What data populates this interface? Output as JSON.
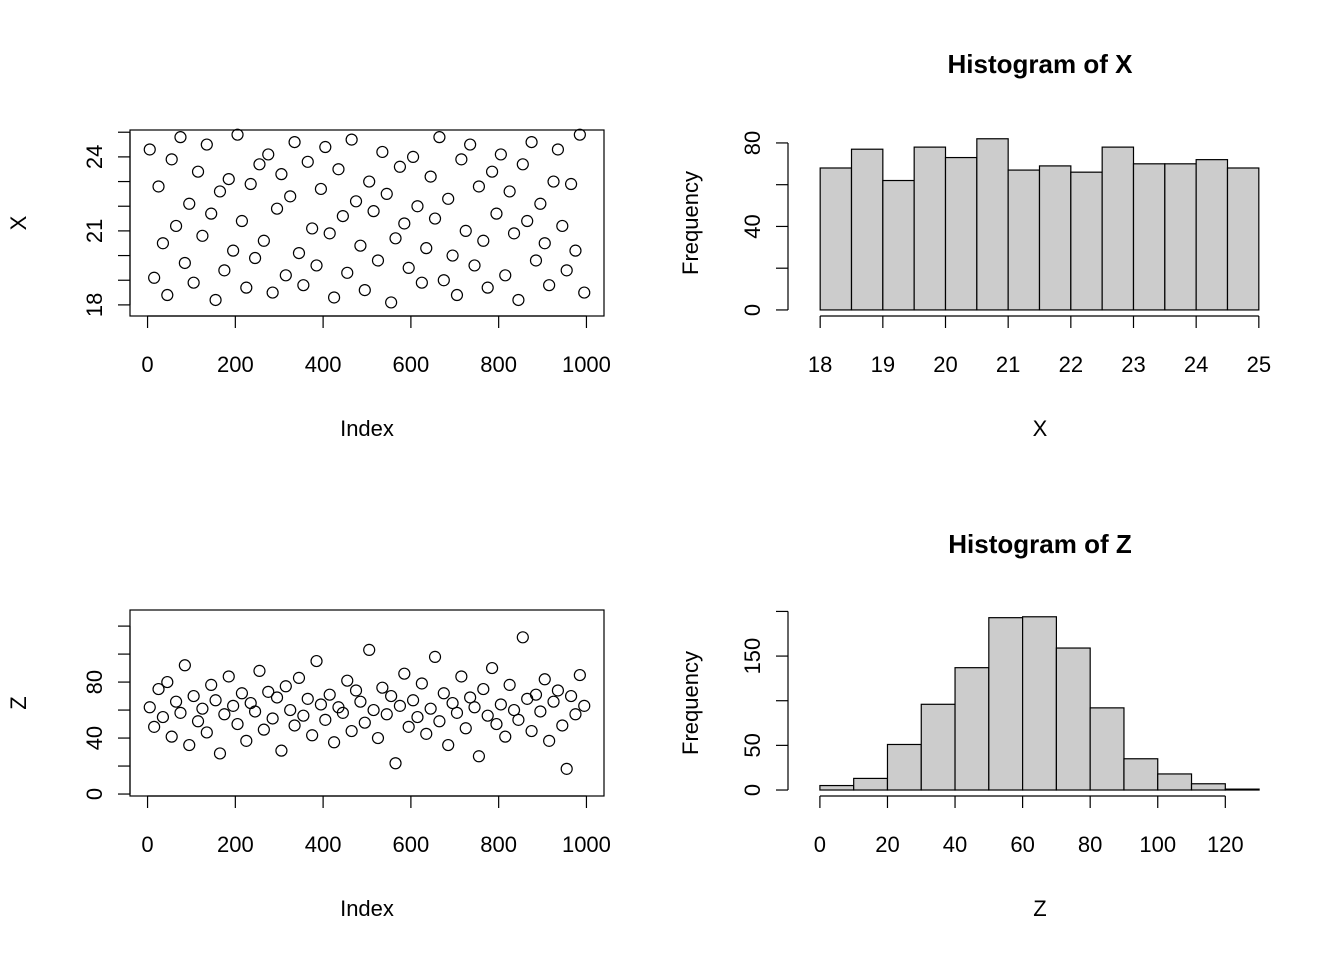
{
  "chart_data": [
    {
      "type": "scatter",
      "xlabel": "Index",
      "ylabel": "X",
      "x": [
        5,
        15,
        25,
        35,
        45,
        55,
        65,
        75,
        85,
        95,
        105,
        115,
        125,
        135,
        145,
        155,
        165,
        175,
        185,
        195,
        205,
        215,
        225,
        235,
        245,
        255,
        265,
        275,
        285,
        295,
        305,
        315,
        325,
        335,
        345,
        355,
        365,
        375,
        385,
        395,
        405,
        415,
        425,
        435,
        445,
        455,
        465,
        475,
        485,
        495,
        505,
        515,
        525,
        535,
        545,
        555,
        565,
        575,
        585,
        595,
        605,
        615,
        625,
        635,
        645,
        655,
        665,
        675,
        685,
        695,
        705,
        715,
        725,
        735,
        745,
        755,
        765,
        775,
        785,
        795,
        805,
        815,
        825,
        835,
        845,
        855,
        865,
        875,
        885,
        895,
        905,
        915,
        925,
        935,
        945,
        955,
        965,
        975,
        985,
        995
      ],
      "values": [
        24.3,
        19.1,
        22.8,
        20.5,
        18.4,
        23.9,
        21.2,
        24.8,
        19.7,
        22.1,
        18.9,
        23.4,
        20.8,
        24.5,
        21.7,
        18.2,
        22.6,
        19.4,
        23.1,
        20.2,
        24.9,
        21.4,
        18.7,
        22.9,
        19.9,
        23.7,
        20.6,
        24.1,
        18.5,
        21.9,
        23.3,
        19.2,
        22.4,
        24.6,
        20.1,
        18.8,
        23.8,
        21.1,
        19.6,
        22.7,
        24.4,
        20.9,
        18.3,
        23.5,
        21.6,
        19.3,
        24.7,
        22.2,
        20.4,
        18.6,
        23.0,
        21.8,
        19.8,
        24.2,
        22.5,
        18.1,
        20.7,
        23.6,
        21.3,
        19.5,
        24.0,
        22.0,
        18.9,
        20.3,
        23.2,
        21.5,
        24.8,
        19.0,
        22.3,
        20.0,
        18.4,
        23.9,
        21.0,
        24.5,
        19.6,
        22.8,
        20.6,
        18.7,
        23.4,
        21.7,
        24.1,
        19.2,
        22.6,
        20.9,
        18.2,
        23.7,
        21.4,
        24.6,
        19.8,
        22.1,
        20.5,
        18.8,
        23.0,
        24.3,
        21.2,
        19.4,
        22.9,
        20.2,
        24.9,
        18.5
      ],
      "xlim": [
        -40,
        1040
      ],
      "ylim": [
        17.55,
        25.09
      ],
      "xticks": [
        0,
        200,
        400,
        600,
        800,
        1000
      ],
      "yticks": [
        18,
        21,
        24
      ],
      "yminorticks": [
        19,
        20,
        22,
        23,
        25
      ]
    },
    {
      "type": "histogram",
      "title": "Histogram of X",
      "xlabel": "X",
      "ylabel": "Frequency",
      "bins": [
        18,
        18.5,
        19,
        19.5,
        20,
        20.5,
        21,
        21.5,
        22,
        22.5,
        23,
        23.5,
        24,
        24.5,
        25
      ],
      "counts": [
        68,
        77,
        62,
        78,
        73,
        82,
        67,
        69,
        66,
        78,
        70,
        70,
        72,
        68
      ],
      "color": "#cccccc",
      "xlim": [
        17.71,
        25.29
      ],
      "ylim": [
        -2.9,
        86.2
      ],
      "xticks": [
        18,
        19,
        20,
        21,
        22,
        23,
        24,
        25
      ],
      "yticks": [
        0,
        40,
        80
      ],
      "yminorticks": [
        20,
        60
      ]
    },
    {
      "type": "scatter",
      "xlabel": "Index",
      "ylabel": "Z",
      "x": [
        5,
        15,
        25,
        35,
        45,
        55,
        65,
        75,
        85,
        95,
        105,
        115,
        125,
        135,
        145,
        155,
        165,
        175,
        185,
        195,
        205,
        215,
        225,
        235,
        245,
        255,
        265,
        275,
        285,
        295,
        305,
        315,
        325,
        335,
        345,
        355,
        365,
        375,
        385,
        395,
        405,
        415,
        425,
        435,
        445,
        455,
        465,
        475,
        485,
        495,
        505,
        515,
        525,
        535,
        545,
        555,
        565,
        575,
        585,
        595,
        605,
        615,
        625,
        635,
        645,
        655,
        665,
        675,
        685,
        695,
        705,
        715,
        725,
        735,
        745,
        755,
        765,
        775,
        785,
        795,
        805,
        815,
        825,
        835,
        845,
        855,
        865,
        875,
        885,
        895,
        905,
        915,
        925,
        935,
        945,
        955,
        965,
        975,
        985,
        995
      ],
      "values": [
        62,
        48,
        75,
        55,
        80,
        41,
        66,
        58,
        92,
        35,
        70,
        52,
        61,
        44,
        78,
        67,
        29,
        57,
        84,
        63,
        50,
        72,
        38,
        65,
        59,
        88,
        46,
        73,
        54,
        69,
        31,
        77,
        60,
        49,
        83,
        56,
        68,
        42,
        95,
        64,
        53,
        71,
        37,
        62,
        58,
        81,
        45,
        74,
        66,
        51,
        103,
        60,
        40,
        76,
        57,
        70,
        22,
        63,
        86,
        48,
        67,
        55,
        79,
        43,
        61,
        98,
        52,
        72,
        35,
        65,
        58,
        84,
        47,
        69,
        62,
        27,
        75,
        56,
        90,
        50,
        64,
        41,
        78,
        60,
        53,
        112,
        68,
        45,
        71,
        59,
        82,
        38,
        66,
        74,
        49,
        18,
        70,
        57,
        85,
        63
      ],
      "xlim": [
        -40,
        1040
      ],
      "ylim": [
        -1.4,
        131.5
      ],
      "xticks": [
        0,
        200,
        400,
        600,
        800,
        1000
      ],
      "yticks": [
        0,
        40,
        80
      ],
      "yminorticks": [
        20,
        60,
        100,
        120
      ]
    },
    {
      "type": "histogram",
      "title": "Histogram of Z",
      "xlabel": "Z",
      "ylabel": "Frequency",
      "bins": [
        0,
        10,
        20,
        30,
        40,
        50,
        60,
        70,
        80,
        90,
        100,
        110,
        120,
        130
      ],
      "counts": [
        5,
        13,
        51,
        96,
        137,
        193,
        194,
        159,
        92,
        35,
        18,
        7,
        1
      ],
      "color": "#cccccc",
      "xlim": [
        -5.3,
        135.3
      ],
      "ylim": [
        -6.7,
        201.6
      ],
      "xticks": [
        0,
        20,
        40,
        60,
        80,
        100,
        120
      ],
      "yticks": [
        0,
        50,
        150
      ],
      "yminorticks": [
        100,
        200
      ]
    }
  ]
}
